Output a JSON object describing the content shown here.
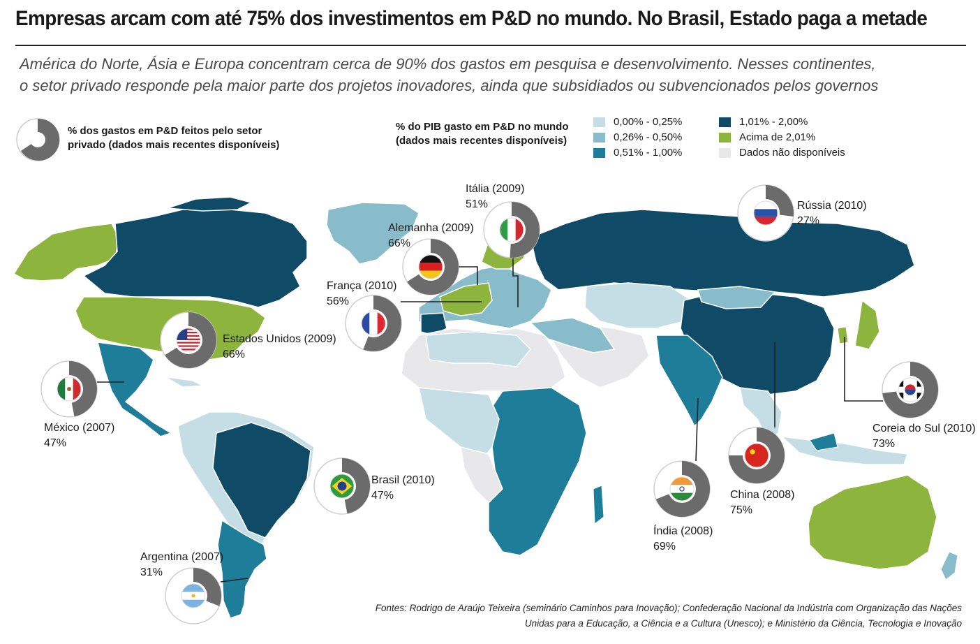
{
  "title": "Empresas arcam com  até 75% dos investimentos em P&D no mundo. No Brasil, Estado paga a metade",
  "subtitle_line1": "América do Norte, Ásia e Europa concentram cerca de 90% dos gastos em pesquisa e desenvolvimento. Nesses continentes,",
  "subtitle_line2": "o setor privado responde pela maior parte dos projetos inovadores, ainda que subsidiados ou subvencionados pelos governos",
  "legend": {
    "pie_text_line1": "% dos gastos em P&D feitos pelo setor",
    "pie_text_line2": "privado (dados mais recentes disponíveis)",
    "map_text_line1": "% do PIB gasto em P&D no mundo",
    "map_text_line2": "(dados mais recentes disponíveis)",
    "classes": [
      {
        "label": "0,00% - 0,25%",
        "color": "#c5dde4"
      },
      {
        "label": "0,26% - 0,50%",
        "color": "#88bccb"
      },
      {
        "label": "0,51% - 1,00%",
        "color": "#1e7d99"
      },
      {
        "label": "1,01% - 2,00%",
        "color": "#0f4a66"
      },
      {
        "label": "Acima de 2,01%",
        "color": "#8db43d"
      },
      {
        "label": "Dados não disponíveis",
        "color": "#e8e8ea"
      }
    ]
  },
  "countries": [
    {
      "name": "Itália (2009)",
      "pct": "51%",
      "value": 51,
      "flag": "italy-flag"
    },
    {
      "name": "Alemanha (2009)",
      "pct": "66%",
      "value": 66,
      "flag": "germany-flag"
    },
    {
      "name": "França (2010)",
      "pct": "56%",
      "value": 56,
      "flag": "france-flag"
    },
    {
      "name": "Estados Unidos (2009)",
      "pct": "66%",
      "value": 66,
      "flag": "usa-flag"
    },
    {
      "name": "México (2007)",
      "pct": "47%",
      "value": 47,
      "flag": "mexico-flag"
    },
    {
      "name": "Brasil (2010)",
      "pct": "47%",
      "value": 47,
      "flag": "brazil-flag"
    },
    {
      "name": "Argentina (2007)",
      "pct": "31%",
      "value": 31,
      "flag": "argentina-flag"
    },
    {
      "name": "Rússia (2010)",
      "pct": "27%",
      "value": 27,
      "flag": "russia-flag"
    },
    {
      "name": "Coreia do Sul (2010)",
      "pct": "73%",
      "value": 73,
      "flag": "south-korea-flag"
    },
    {
      "name": "China (2008)",
      "pct": "75%",
      "value": 75,
      "flag": "china-flag"
    },
    {
      "name": "Índia (2008)",
      "pct": "69%",
      "value": 69,
      "flag": "india-flag"
    }
  ],
  "sources_line1": "Fontes: Rodrigo de Araújo Teixeira (seminário Caminhos para Inovação); Confederação Nacional da Indústria com Organização das Nações",
  "sources_line2": "Unidas para a Educação, a Ciência e a Cultura (Unesco); e Ministério da Ciência, Tecnologia e Inovação"
}
